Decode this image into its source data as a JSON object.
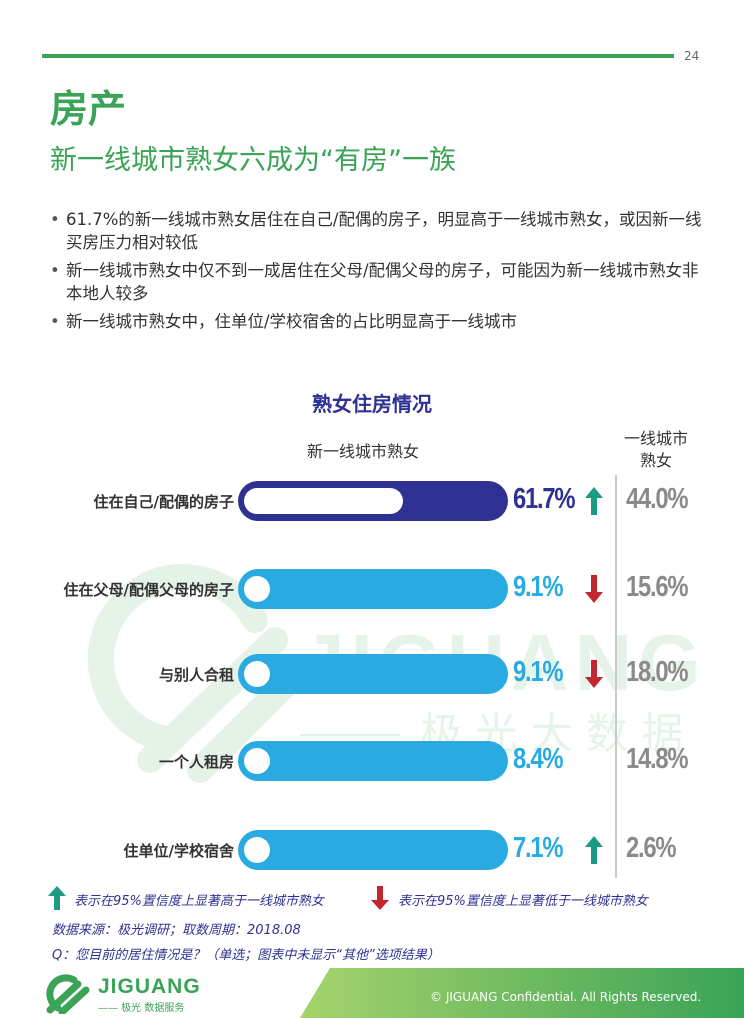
{
  "page": {
    "number": "24",
    "title": "房产",
    "subtitle": "新一线城市熟女六成为“有房”一族"
  },
  "bullets": [
    "61.7%的新一线城市熟女居住在自己/配偶的房子，明显高于一线城市熟女，或因新一线买房压力相对较低",
    "新一线城市熟女中仅不到一成居住在父母/配偶父母的房子，可能因为新一线城市熟女非本地人较多",
    "新一线城市熟女中，住单位/学校宿舍的占比明显高于一线城市"
  ],
  "chart_data": {
    "type": "bar",
    "title": "熟女住房情况",
    "categories": [
      "住在自己/配偶的房子",
      "住在父母/配偶父母的房子",
      "与别人合租",
      "一个人租房",
      "住单位/学校宿舍"
    ],
    "series": [
      {
        "name": "新一线城市熟女",
        "values": [
          61.7,
          9.1,
          9.1,
          8.4,
          7.1
        ],
        "labels": [
          "61.7%",
          "9.1%",
          "9.1%",
          "8.4%",
          "7.1%"
        ],
        "significance": [
          "up",
          "down",
          "down",
          "none",
          "up"
        ]
      },
      {
        "name": "一线城市\n熟女",
        "values": [
          44.0,
          15.6,
          18.0,
          14.8,
          2.6
        ],
        "labels": [
          "44.0%",
          "15.6%",
          "18.0%",
          "14.8%",
          "2.6%"
        ]
      }
    ],
    "ylim": [
      0,
      100
    ],
    "colors": {
      "highlight": "#2e3192",
      "bar": "#29abe2",
      "up": "#1a9b82",
      "down": "#c1272d",
      "compare": "#8a8a8a"
    }
  },
  "legend": {
    "up_text": "表示在95%置信度上显著高于一线城市熟女",
    "down_text": "表示在95%置信度上显著低于一线城市熟女"
  },
  "notes": {
    "source": "数据来源：极光调研；取数周期：2018.08",
    "question": "Q：您目前的居住情况是？（单选；图表中未显示“其他”选项结果）"
  },
  "watermark": {
    "brand": "JIGUANG",
    "cn": "极 光 大 数 据"
  },
  "footer": {
    "logo": "JIGUANG",
    "logo_sub": "—— 极光 数据服务",
    "copyright": "© JIGUANG Confidential. All Rights Reserved."
  }
}
